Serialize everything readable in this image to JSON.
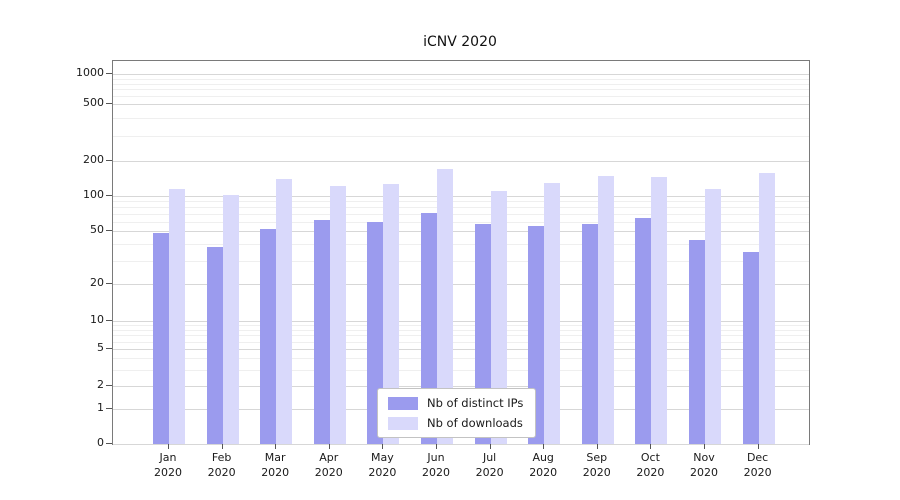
{
  "title": "iCNV 2020",
  "chart_data": {
    "type": "bar",
    "title": "iCNV 2020",
    "categories": [
      "Jan 2020",
      "Feb 2020",
      "Mar 2020",
      "Apr 2020",
      "May 2020",
      "Jun 2020",
      "Jul 2020",
      "Aug 2020",
      "Sep 2020",
      "Oct 2020",
      "Nov 2020",
      "Dec 2020"
    ],
    "series": [
      {
        "name": "Nb of distinct IPs",
        "color": "#9b9bee",
        "values": [
          48,
          38,
          52,
          62,
          60,
          72,
          57,
          55,
          57,
          65,
          43,
          35
        ]
      },
      {
        "name": "Nb of downloads",
        "color": "#d9d9fb",
        "values": [
          115,
          102,
          140,
          122,
          128,
          170,
          110,
          130,
          150,
          145,
          115,
          158
        ]
      }
    ],
    "yscale": "symlog",
    "yticks": [
      0,
      1,
      2,
      5,
      10,
      20,
      50,
      100,
      200,
      500,
      1000
    ],
    "ylim": [
      0,
      1500
    ],
    "xlabel": "",
    "ylabel": "",
    "grid": true,
    "legend_position": "lower center"
  }
}
